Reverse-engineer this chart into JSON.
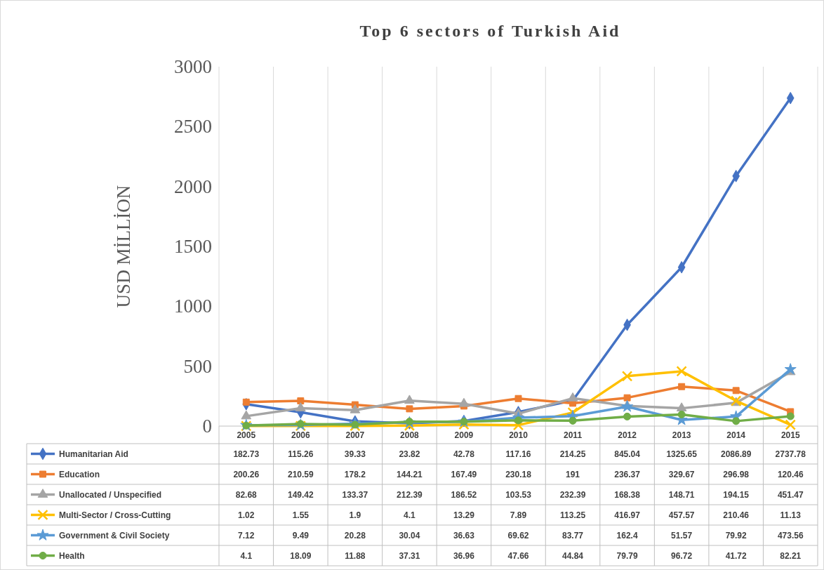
{
  "chart_data": {
    "type": "line",
    "title": "Top 6 sectors of Turkish Aid",
    "ylabel": "USD MİLLİON",
    "categories": [
      "2005",
      "2006",
      "2007",
      "2008",
      "2009",
      "2010",
      "2011",
      "2012",
      "2013",
      "2014",
      "2015"
    ],
    "ylim": [
      0,
      3000
    ],
    "yticks": [
      0,
      500,
      1000,
      1500,
      2000,
      2500,
      3000
    ],
    "grid": "x",
    "legend": "bottom",
    "data_labels": true,
    "series": [
      {
        "name": "Humanitarian Aid",
        "color": "#4472c4",
        "marker": "diamond",
        "values": [
          182.73,
          115.26,
          39.33,
          23.82,
          42.78,
          117.16,
          214.25,
          845.04,
          1325.65,
          2086.89,
          2737.78
        ]
      },
      {
        "name": "Education",
        "color": "#ed7d31",
        "marker": "square",
        "values": [
          200.26,
          210.59,
          178.2,
          144.21,
          167.49,
          230.18,
          191,
          236.37,
          329.67,
          296.98,
          120.46
        ]
      },
      {
        "name": "Unallocated / Unspecified",
        "color": "#a5a5a5",
        "marker": "triangle",
        "values": [
          82.68,
          149.42,
          133.37,
          212.39,
          186.52,
          103.53,
          232.39,
          168.38,
          148.71,
          194.15,
          451.47
        ]
      },
      {
        "name": "Multi-Sector / Cross-Cutting",
        "color": "#ffc000",
        "marker": "cross",
        "values": [
          1.02,
          1.55,
          1.9,
          4.1,
          13.29,
          7.89,
          113.25,
          416.97,
          457.57,
          210.46,
          11.13
        ]
      },
      {
        "name": "Government & Civil Society",
        "color": "#5b9bd5",
        "marker": "star",
        "values": [
          7.12,
          9.49,
          20.28,
          30.04,
          36.63,
          69.62,
          83.77,
          162.4,
          51.57,
          79.92,
          473.56
        ]
      },
      {
        "name": "Health",
        "color": "#70ad47",
        "marker": "circle",
        "values": [
          4.1,
          18.09,
          11.88,
          37.31,
          36.96,
          47.66,
          44.84,
          79.79,
          96.72,
          41.72,
          82.21
        ]
      }
    ]
  }
}
